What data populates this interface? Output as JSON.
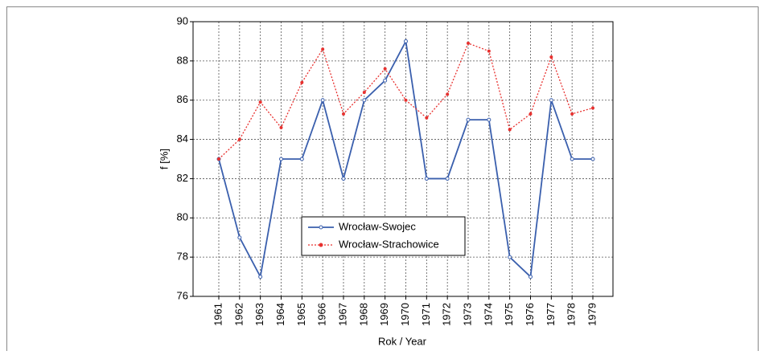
{
  "chart_data": {
    "type": "line",
    "x_label": "Rok / Year",
    "y_label": "f [%]",
    "categories": [
      "1961",
      "1962",
      "1963",
      "1964",
      "1965",
      "1966",
      "1967",
      "1968",
      "1969",
      "1970",
      "1971",
      "1972",
      "1973",
      "1974",
      "1975",
      "1976",
      "1977",
      "1978",
      "1979"
    ],
    "series": [
      {
        "name": "Wrocław-Swojec",
        "color": "#3a5fad",
        "dash": false,
        "values": [
          83,
          79,
          77,
          83,
          83,
          86,
          82,
          86,
          87,
          89,
          82,
          82,
          85,
          85,
          78,
          77,
          86,
          83,
          83
        ]
      },
      {
        "name": "Wrocław-Strachowice",
        "color": "#e8312f",
        "dash": true,
        "values": [
          83,
          84,
          85.9,
          84.6,
          86.9,
          88.6,
          85.3,
          86.4,
          87.6,
          86,
          85.1,
          86.3,
          88.9,
          88.5,
          84.5,
          85.3,
          88.2,
          85.3,
          85.6
        ]
      }
    ],
    "ylim": [
      76,
      90
    ],
    "yticks": [
      76,
      78,
      80,
      82,
      84,
      86,
      88,
      90
    ],
    "grid": true
  }
}
